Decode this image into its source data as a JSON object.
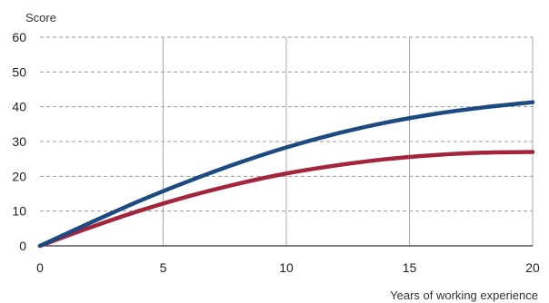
{
  "chart_data": {
    "type": "line",
    "xlabel": "Years of working experience",
    "ylabel": "Score",
    "xlim": [
      0,
      20
    ],
    "ylim": [
      0,
      60
    ],
    "x_ticks": [
      "0",
      "5",
      "10",
      "15",
      "20"
    ],
    "y_ticks": [
      "0",
      "10",
      "20",
      "30",
      "40",
      "50",
      "60"
    ],
    "grid": {
      "vertical": "solid",
      "horizontal": "dashed"
    },
    "x": [
      0,
      2,
      4,
      6,
      8,
      10,
      12,
      14,
      16,
      18,
      20
    ],
    "series": [
      {
        "color": "#1d4a80",
        "values": [
          0,
          6.5,
          12.8,
          18.5,
          23.7,
          28.3,
          32.2,
          35.4,
          37.9,
          39.8,
          41.3
        ]
      },
      {
        "color": "#a3243b",
        "values": [
          0,
          5.2,
          10.0,
          14.2,
          17.8,
          20.8,
          23.1,
          24.9,
          26.1,
          26.8,
          27.0
        ]
      }
    ]
  }
}
